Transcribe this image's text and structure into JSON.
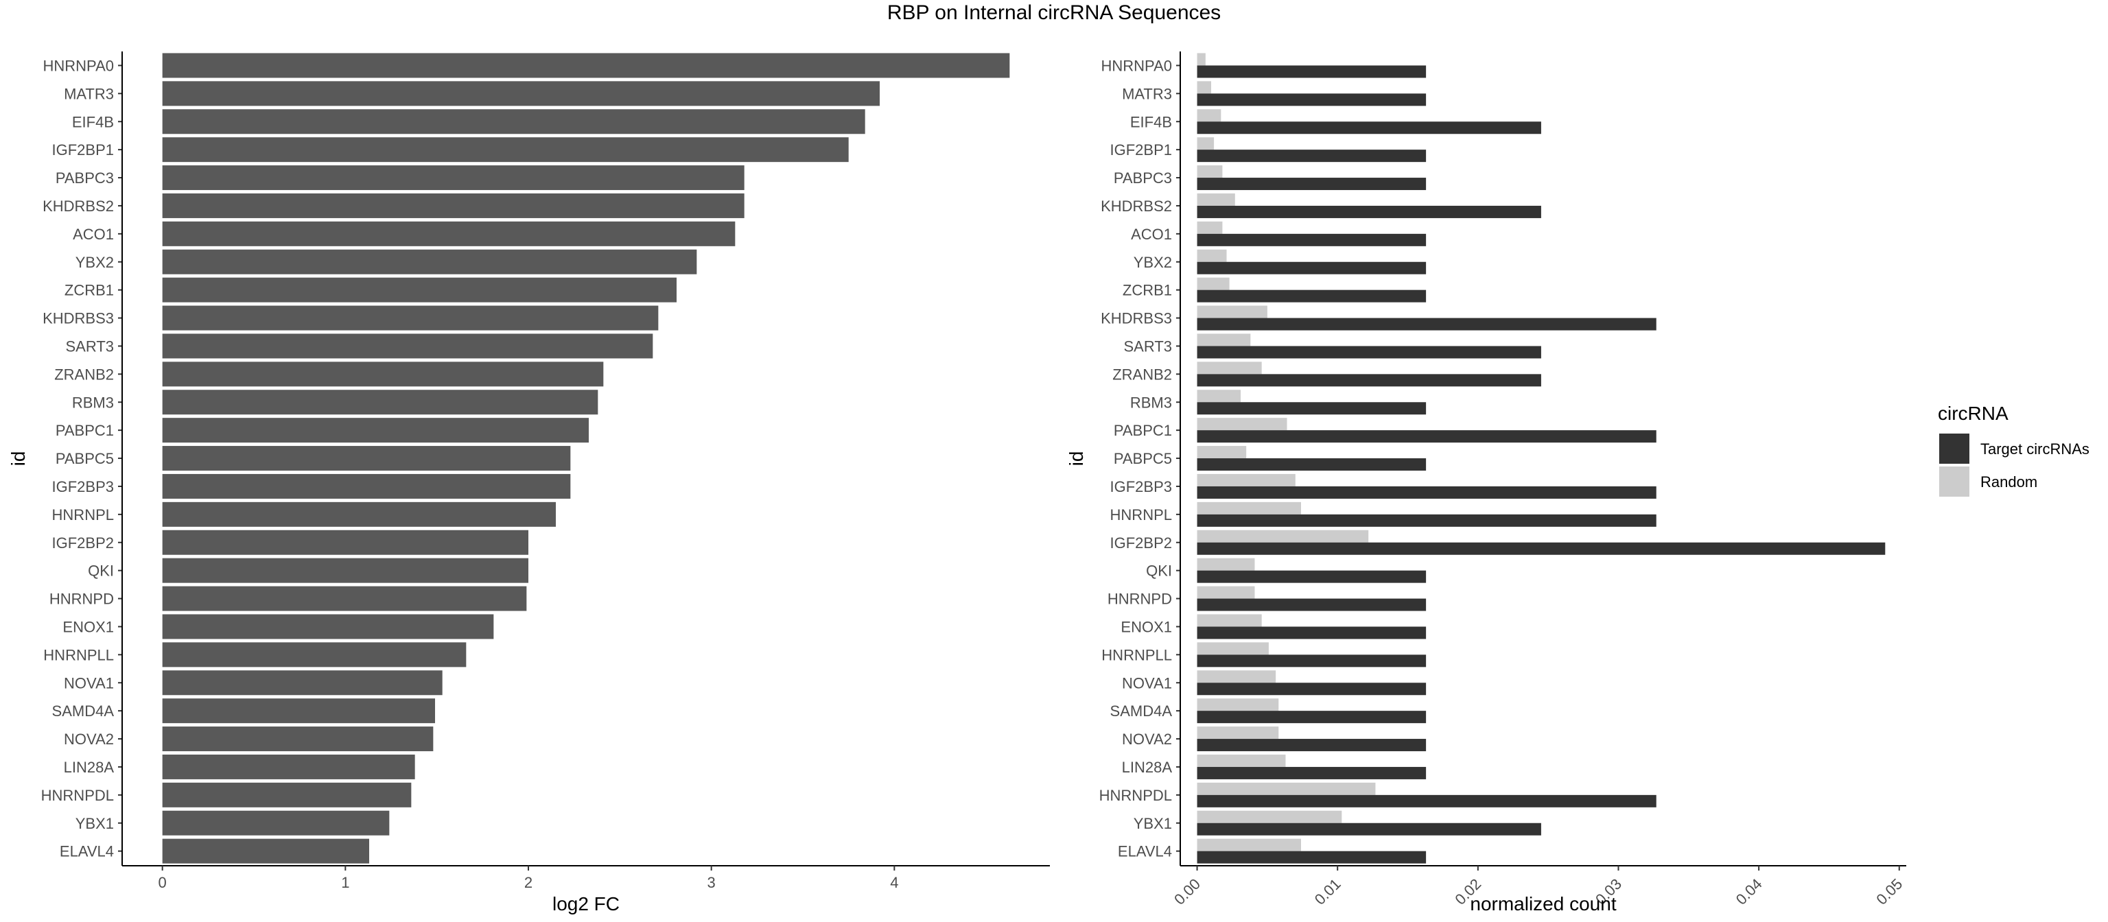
{
  "title": "RBP on Internal circRNA Sequences",
  "chart_data": [
    {
      "type": "bar",
      "orientation": "horizontal",
      "xlabel": "log2 FC",
      "ylabel": "id",
      "xlim": [
        -0.22,
        4.85
      ],
      "xticks": [
        0,
        1,
        2,
        3,
        4
      ],
      "grid": false,
      "categories": [
        "HNRNPA0",
        "MATR3",
        "EIF4B",
        "IGF2BP1",
        "PABPC3",
        "KHDRBS2",
        "ACO1",
        "YBX2",
        "ZCRB1",
        "KHDRBS3",
        "SART3",
        "ZRANB2",
        "RBM3",
        "PABPC1",
        "PABPC5",
        "IGF2BP3",
        "HNRNPL",
        "IGF2BP2",
        "QKI",
        "HNRNPD",
        "ENOX1",
        "HNRNPLL",
        "NOVA1",
        "SAMD4A",
        "NOVA2",
        "LIN28A",
        "HNRNPDL",
        "YBX1",
        "ELAVL4"
      ],
      "values": [
        4.63,
        3.92,
        3.84,
        3.75,
        3.18,
        3.18,
        3.13,
        2.92,
        2.81,
        2.71,
        2.68,
        2.41,
        2.38,
        2.33,
        2.23,
        2.23,
        2.15,
        2.0,
        2.0,
        1.99,
        1.81,
        1.66,
        1.53,
        1.49,
        1.48,
        1.38,
        1.36,
        1.24,
        1.13
      ],
      "colors": {
        "bar": "#595959"
      }
    },
    {
      "type": "bar",
      "orientation": "horizontal",
      "xlabel": "normalized count",
      "ylabel": "id",
      "xlim": [
        -0.0012,
        0.0505
      ],
      "xticks": [
        "0.00",
        "0.01",
        "0.02",
        "0.03",
        "0.04",
        "0.05"
      ],
      "grid": false,
      "legend": {
        "title": "circRNA",
        "position": "right"
      },
      "categories": [
        "HNRNPA0",
        "MATR3",
        "EIF4B",
        "IGF2BP1",
        "PABPC3",
        "KHDRBS2",
        "ACO1",
        "YBX2",
        "ZCRB1",
        "KHDRBS3",
        "SART3",
        "ZRANB2",
        "RBM3",
        "PABPC1",
        "PABPC5",
        "IGF2BP3",
        "HNRNPL",
        "IGF2BP2",
        "QKI",
        "HNRNPD",
        "ENOX1",
        "HNRNPLL",
        "NOVA1",
        "SAMD4A",
        "NOVA2",
        "LIN28A",
        "HNRNPDL",
        "YBX1",
        "ELAVL4"
      ],
      "series": [
        {
          "name": "Target circRNAs",
          "color": "#333333",
          "values": [
            0.0163,
            0.0163,
            0.0245,
            0.0163,
            0.0163,
            0.0245,
            0.0163,
            0.0163,
            0.0163,
            0.0327,
            0.0245,
            0.0245,
            0.0163,
            0.0327,
            0.0163,
            0.0327,
            0.0327,
            0.049,
            0.0163,
            0.0163,
            0.0163,
            0.0163,
            0.0163,
            0.0163,
            0.0163,
            0.0163,
            0.0327,
            0.0245,
            0.0163
          ]
        },
        {
          "name": "Random",
          "color": "#cccccc",
          "values": [
            0.0006,
            0.001,
            0.0017,
            0.0012,
            0.0018,
            0.0027,
            0.0018,
            0.0021,
            0.0023,
            0.005,
            0.0038,
            0.0046,
            0.0031,
            0.0064,
            0.0035,
            0.007,
            0.0074,
            0.0122,
            0.0041,
            0.0041,
            0.0046,
            0.0051,
            0.0056,
            0.0058,
            0.0058,
            0.0063,
            0.0127,
            0.0103,
            0.0074
          ]
        }
      ]
    }
  ]
}
